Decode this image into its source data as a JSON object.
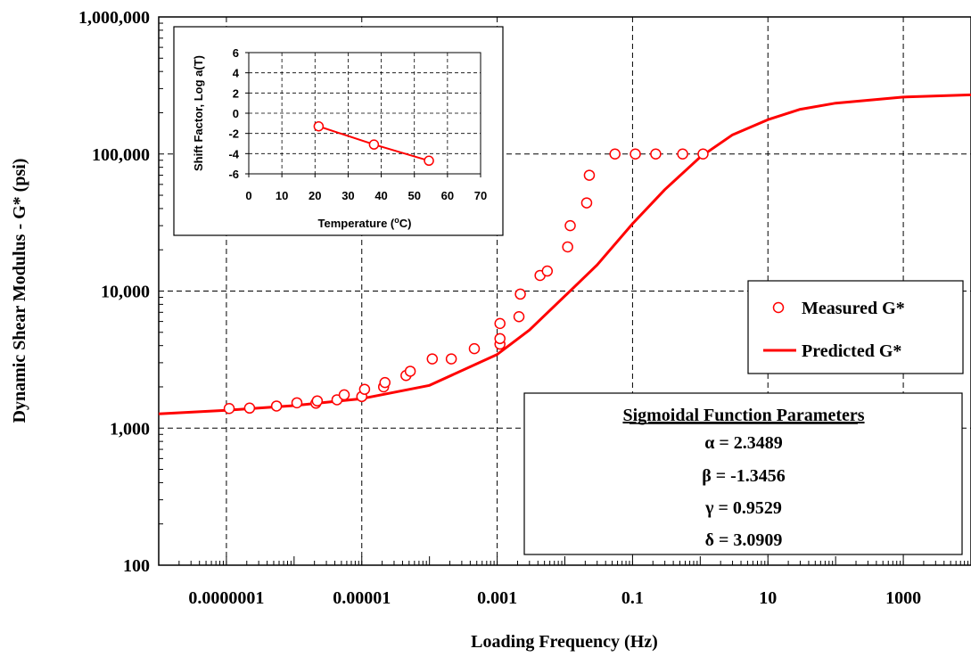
{
  "chart_data": [
    {
      "type": "scatter",
      "xlabel": "Loading Frequency (Hz)",
      "ylabel": "Dynamic Shear Modulus - G* (psi)",
      "xscale": "log",
      "yscale": "log",
      "xlim": [
        1e-08,
        10000
      ],
      "ylim": [
        100,
        1000000
      ],
      "x_ticks": [
        "0.0000001",
        "0.00001",
        "0.001",
        "0.1",
        "10",
        "1000"
      ],
      "y_ticks": [
        "100",
        "1,000",
        "10,000",
        "100,000",
        "1,000,000"
      ],
      "grid": true,
      "legend_position": "right",
      "series": [
        {
          "name": "Measured G*",
          "kind": "markers",
          "color": "#ff0000",
          "x": [
            1.1e-07,
            2.2e-07,
            5.5e-07,
            1.1e-06,
            2.1e-06,
            2.2e-06,
            4.3e-06,
            5.5e-06,
            1e-05,
            1.1e-05,
            2.1e-05,
            2.2e-05,
            4.5e-05,
            5.2e-05,
            0.00011,
            0.00021,
            0.00046,
            0.0011,
            0.0011,
            0.0011,
            0.0021,
            0.0022,
            0.0043,
            0.0055,
            0.011,
            0.012,
            0.021,
            0.023,
            0.055,
            0.11,
            0.22,
            0.55,
            1.1
          ],
          "y": [
            1390,
            1400,
            1450,
            1530,
            1520,
            1580,
            1610,
            1750,
            1700,
            1920,
            2000,
            2150,
            2420,
            2600,
            3200,
            3200,
            3800,
            4100,
            4500,
            5800,
            6500,
            9500,
            13000,
            14000,
            21000,
            30000,
            44000,
            70000,
            100000,
            100000,
            100000,
            100000,
            100000
          ]
        },
        {
          "name": "Predicted G*",
          "kind": "line",
          "color": "#ff0000",
          "x": [
            1e-08,
            1e-07,
            1e-06,
            1e-05,
            0.0001,
            0.001,
            0.003,
            0.01,
            0.03,
            0.1,
            0.3,
            1,
            3,
            10,
            30,
            100,
            1000,
            10000
          ],
          "y": [
            1270,
            1350,
            1460,
            1640,
            2050,
            3450,
            5200,
            9200,
            15500,
            31000,
            55000,
            95000,
            138000,
            178000,
            212000,
            235000,
            260000,
            270000
          ]
        }
      ]
    },
    {
      "type": "line",
      "xlabel": "Temperature (oC)",
      "ylabel": "Shift Factor, Log a(T)",
      "xlim": [
        0,
        70
      ],
      "ylim": [
        -6,
        6
      ],
      "x_ticks": [
        "0",
        "10",
        "20",
        "30",
        "40",
        "50",
        "60",
        "70"
      ],
      "y_ticks": [
        "6",
        "4",
        "2",
        "0",
        "-2",
        "-4",
        "-6"
      ],
      "grid": true,
      "series": [
        {
          "name": "",
          "color": "#ff0000",
          "x": [
            21.1,
            37.8,
            54.4
          ],
          "y": [
            -1.3,
            -3.1,
            -4.7
          ]
        }
      ]
    }
  ],
  "legend": {
    "measured": "Measured G*",
    "predicted": "Predicted G*"
  },
  "params": {
    "title": "Sigmoidal Function Parameters",
    "alpha": "α = 2.3489",
    "beta": "β = -1.3456",
    "gamma": "γ = 0.9529",
    "delta": "δ = 3.0909"
  },
  "colors": {
    "series": "#ff0000",
    "axis": "#000000",
    "grid": "#000000"
  }
}
